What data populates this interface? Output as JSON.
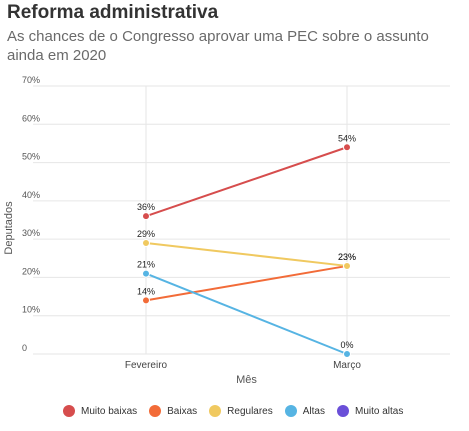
{
  "header": {
    "title": "Reforma administrativa",
    "subtitle": "As chances de o Congresso aprovar uma PEC sobre o assunto ainda em 2020"
  },
  "chart_data": {
    "type": "line",
    "title": "Reforma administrativa",
    "subtitle": "As chances de o Congresso aprovar uma PEC sobre o assunto ainda em 2020",
    "xlabel": "Mês",
    "ylabel": "Deputados",
    "categories": [
      "Fevereiro",
      "Março"
    ],
    "ylim": [
      0,
      70
    ],
    "yticks": [
      0,
      10,
      20,
      30,
      40,
      50,
      60,
      70
    ],
    "ytick_labels": [
      "0",
      "10%",
      "20%",
      "30%",
      "40%",
      "50%",
      "60%",
      "70%"
    ],
    "grid": true,
    "legend_position": "bottom",
    "series": [
      {
        "name": "Muito baixas",
        "color": "#d64d4d",
        "values": [
          36,
          54
        ],
        "labels": [
          "36%",
          "54%"
        ]
      },
      {
        "name": "Baixas",
        "color": "#f26b38",
        "values": [
          14,
          23
        ],
        "labels": [
          "14%",
          "23%"
        ]
      },
      {
        "name": "Regulares",
        "color": "#f0c960",
        "values": [
          29,
          23
        ],
        "labels": [
          "29%",
          "23%"
        ]
      },
      {
        "name": "Altas",
        "color": "#56b4e3",
        "values": [
          21,
          0
        ],
        "labels": [
          "21%",
          "0%"
        ]
      },
      {
        "name": "Muito altas",
        "color": "#6a4fd8",
        "values": [
          null,
          null
        ],
        "labels": [
          "",
          ""
        ]
      }
    ]
  }
}
